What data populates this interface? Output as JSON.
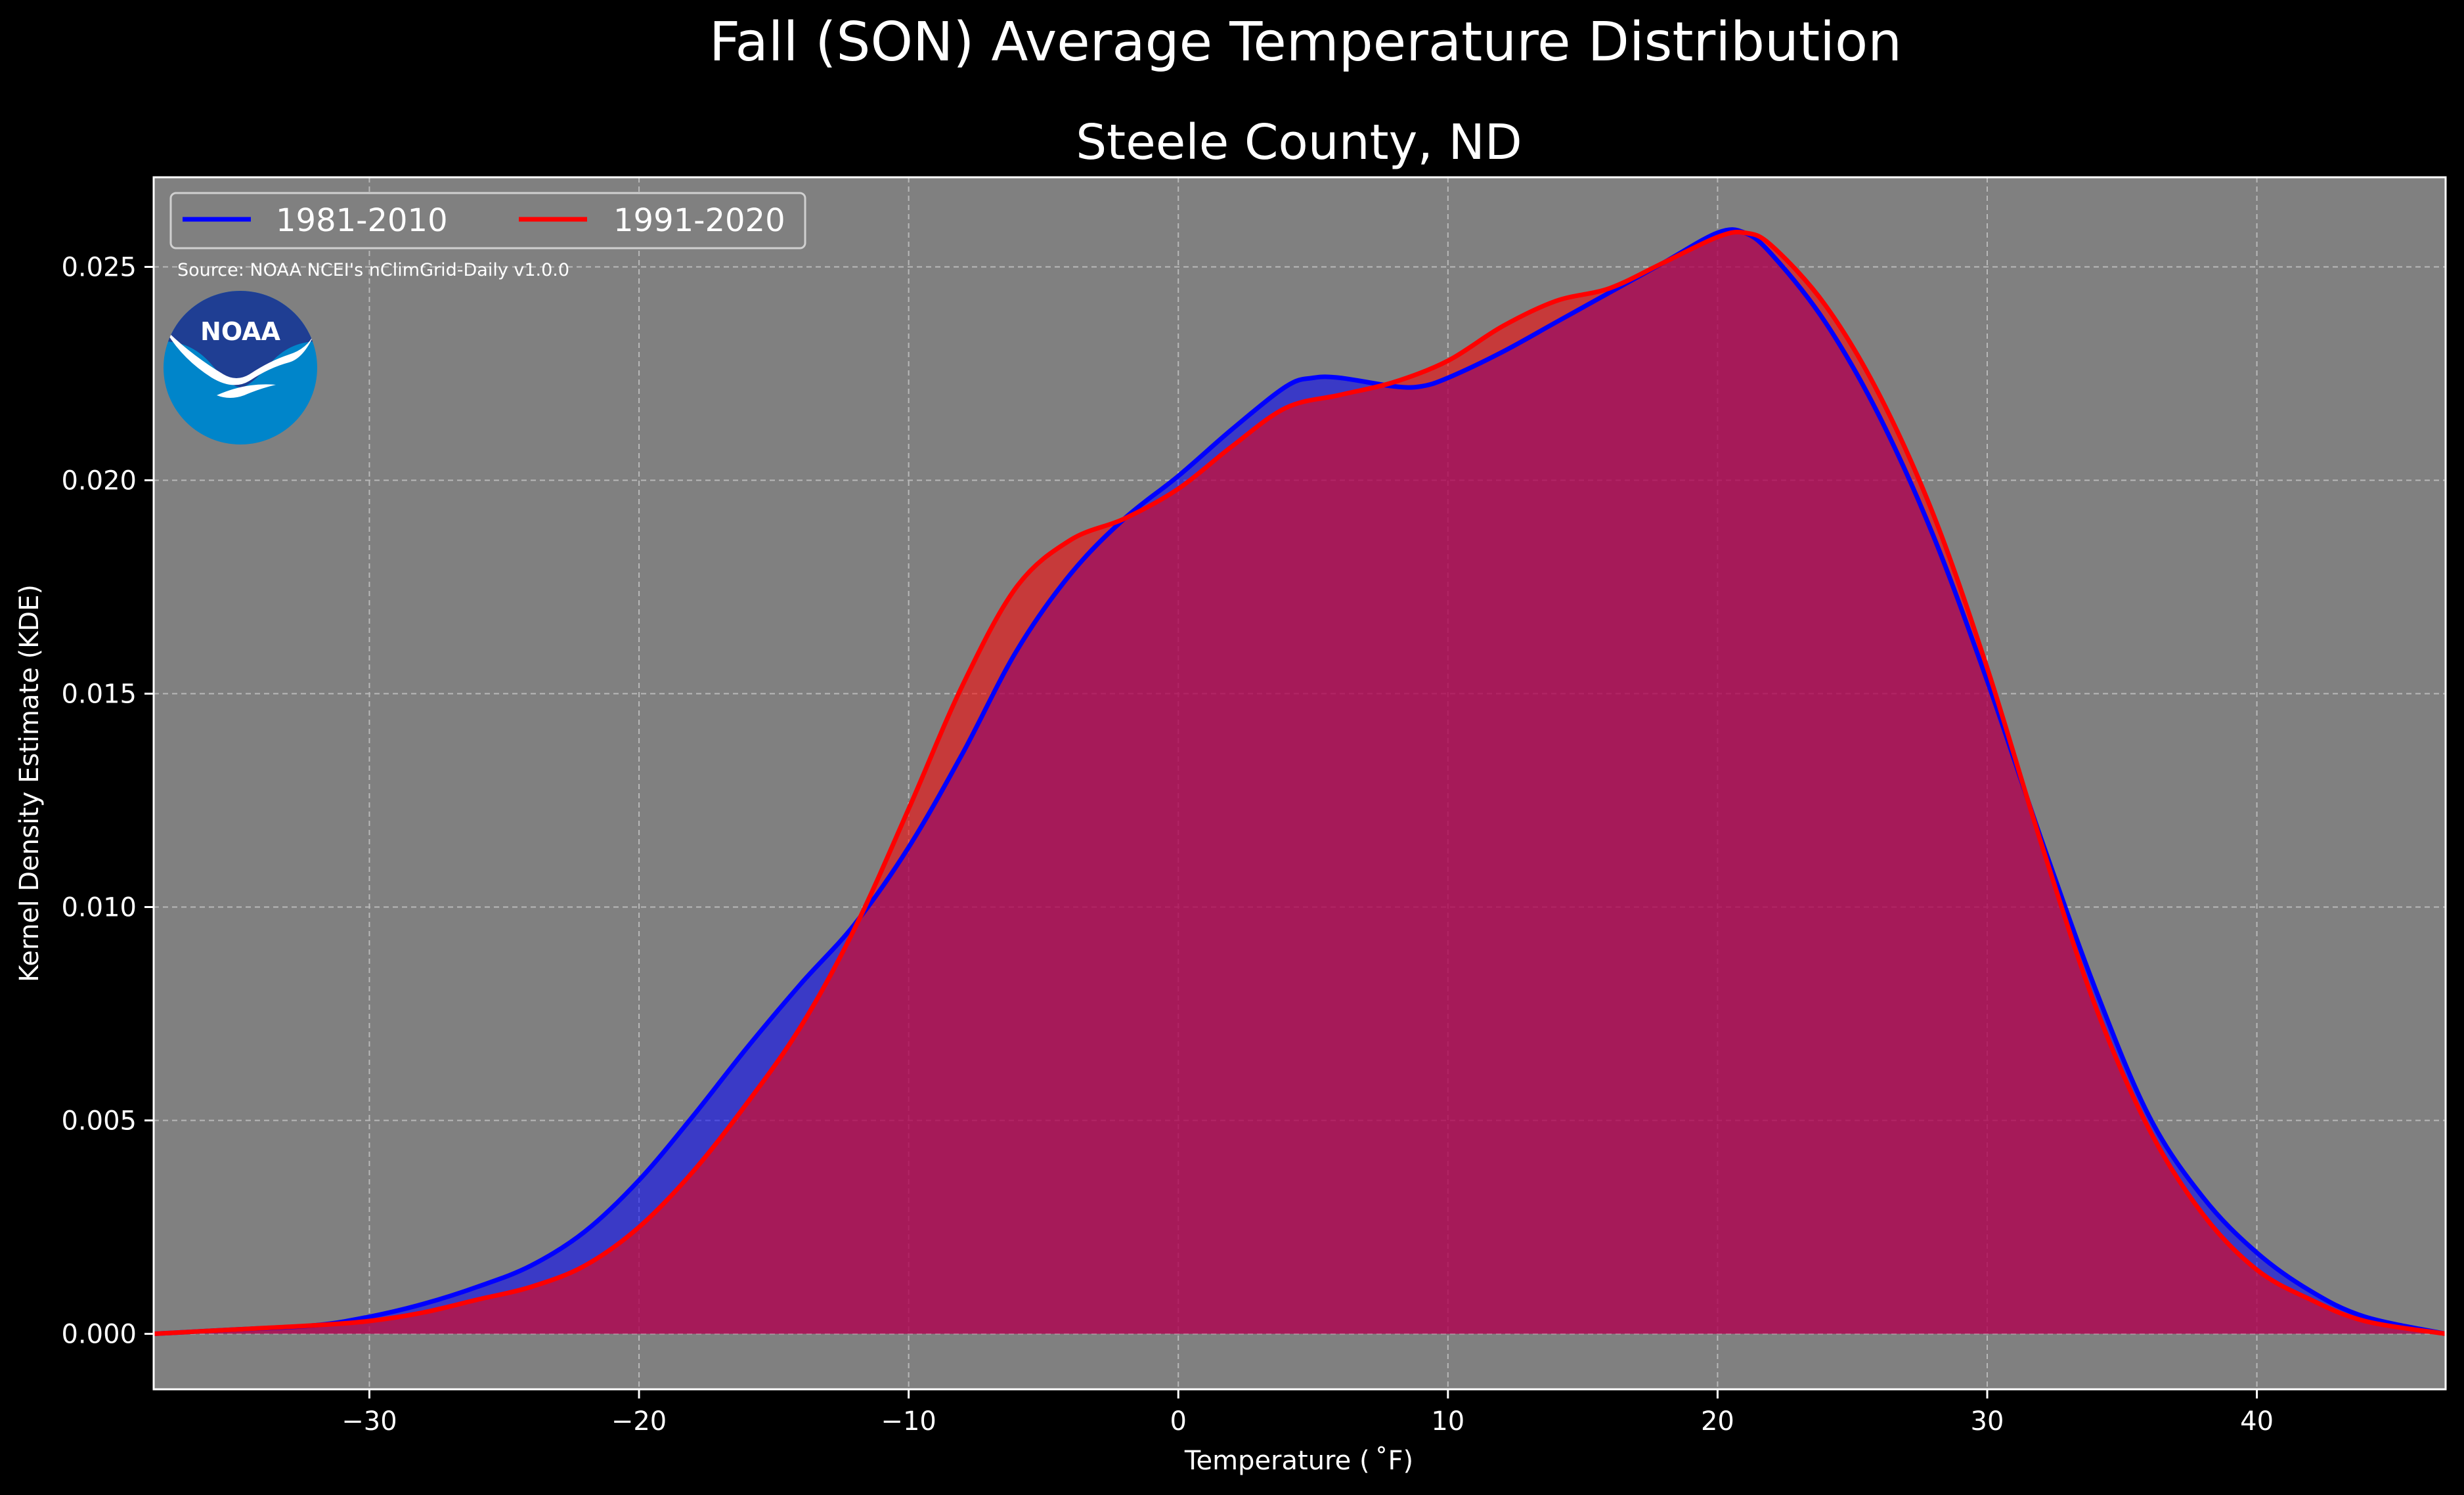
{
  "chart_data": {
    "type": "area",
    "suptitle": "Fall (SON) Average Temperature Distribution",
    "title": "Steele County, ND",
    "xlabel": "Temperature ($^\\circ$F)",
    "xlabel_display": "Temperature ( ˚F)",
    "ylabel": "Kernel Density Estimate (KDE)",
    "xlim": [
      -38,
      47
    ],
    "ylim": [
      -0.0013,
      0.0271
    ],
    "xticks": [
      -30,
      -20,
      -10,
      0,
      10,
      20,
      30,
      40
    ],
    "xtick_labels": [
      "−30",
      "−20",
      "−10",
      "0",
      "10",
      "20",
      "30",
      "40"
    ],
    "yticks": [
      0.0,
      0.005,
      0.01,
      0.015,
      0.02,
      0.025
    ],
    "ytick_labels": [
      "0.000",
      "0.005",
      "0.010",
      "0.015",
      "0.020",
      "0.025"
    ],
    "grid": true,
    "legend_position": "top-left",
    "source_text": "Source: NOAA NCEI's nClimGrid-Daily v1.0.0",
    "logo_text": "NOAA",
    "background_color": "#000000",
    "plot_background_color": "#808080",
    "series": [
      {
        "name": "1981-2010",
        "color": "#0000ff",
        "fill": "#0000ff",
        "points": [
          [
            -38,
            0.0
          ],
          [
            -35,
            0.0001
          ],
          [
            -32,
            0.0002
          ],
          [
            -30,
            0.0004
          ],
          [
            -28,
            0.0007
          ],
          [
            -26,
            0.0011
          ],
          [
            -24,
            0.0016
          ],
          [
            -22,
            0.0024
          ],
          [
            -20,
            0.0036
          ],
          [
            -18,
            0.0051
          ],
          [
            -16,
            0.0067
          ],
          [
            -14,
            0.0082
          ],
          [
            -12,
            0.0096
          ],
          [
            -10,
            0.0114
          ],
          [
            -8,
            0.0136
          ],
          [
            -6,
            0.016
          ],
          [
            -4,
            0.0178
          ],
          [
            -2,
            0.0191
          ],
          [
            0,
            0.0201
          ],
          [
            2,
            0.0212
          ],
          [
            4,
            0.0222
          ],
          [
            5,
            0.0224
          ],
          [
            6,
            0.0224
          ],
          [
            8,
            0.0222
          ],
          [
            9,
            0.0222
          ],
          [
            10,
            0.0224
          ],
          [
            12,
            0.023
          ],
          [
            14,
            0.0237
          ],
          [
            16,
            0.0244
          ],
          [
            18,
            0.0251
          ],
          [
            20,
            0.0258
          ],
          [
            21,
            0.0258
          ],
          [
            22,
            0.0253
          ],
          [
            24,
            0.0237
          ],
          [
            26,
            0.0215
          ],
          [
            28,
            0.0187
          ],
          [
            30,
            0.0153
          ],
          [
            32,
            0.0116
          ],
          [
            34,
            0.0081
          ],
          [
            36,
            0.0051
          ],
          [
            38,
            0.0032
          ],
          [
            40,
            0.0019
          ],
          [
            42,
            0.001
          ],
          [
            44,
            0.0004
          ],
          [
            47,
            0.0
          ]
        ]
      },
      {
        "name": "1991-2020",
        "color": "#ff0000",
        "fill": "#ff0000",
        "points": [
          [
            -38,
            0.0
          ],
          [
            -35,
            0.0001
          ],
          [
            -32,
            0.0002
          ],
          [
            -30,
            0.0003
          ],
          [
            -28,
            0.0005
          ],
          [
            -26,
            0.0008
          ],
          [
            -24,
            0.0011
          ],
          [
            -22,
            0.0016
          ],
          [
            -20,
            0.0025
          ],
          [
            -18,
            0.0038
          ],
          [
            -16,
            0.0054
          ],
          [
            -14,
            0.0072
          ],
          [
            -12,
            0.0095
          ],
          [
            -10,
            0.0123
          ],
          [
            -8,
            0.0152
          ],
          [
            -6,
            0.0175
          ],
          [
            -4,
            0.0186
          ],
          [
            -2,
            0.0191
          ],
          [
            0,
            0.0198
          ],
          [
            2,
            0.0208
          ],
          [
            4,
            0.0217
          ],
          [
            6,
            0.022
          ],
          [
            8,
            0.0223
          ],
          [
            10,
            0.0228
          ],
          [
            12,
            0.0236
          ],
          [
            14,
            0.0242
          ],
          [
            16,
            0.0245
          ],
          [
            18,
            0.0251
          ],
          [
            20,
            0.0257
          ],
          [
            21,
            0.0258
          ],
          [
            22,
            0.0255
          ],
          [
            24,
            0.0241
          ],
          [
            26,
            0.022
          ],
          [
            28,
            0.0192
          ],
          [
            30,
            0.0156
          ],
          [
            32,
            0.0115
          ],
          [
            34,
            0.0077
          ],
          [
            36,
            0.0048
          ],
          [
            38,
            0.0028
          ],
          [
            40,
            0.0015
          ],
          [
            42,
            0.0008
          ],
          [
            44,
            0.0003
          ],
          [
            47,
            0.0
          ]
        ]
      }
    ]
  }
}
